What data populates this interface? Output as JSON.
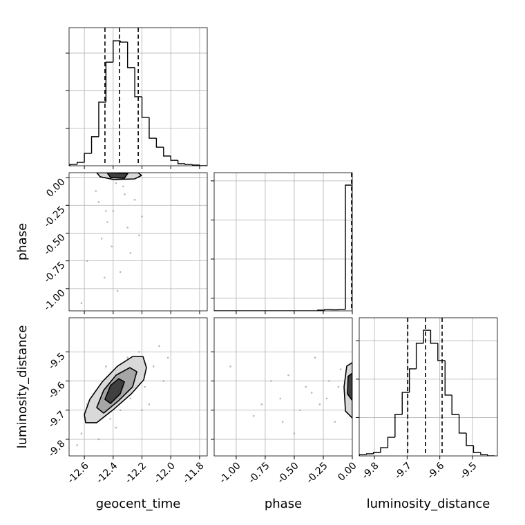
{
  "chart_data": [
    {
      "type": "histogram",
      "color": "#000000",
      "bins": [
        -12.7,
        -12.65,
        -12.6,
        -12.55,
        -12.5,
        -12.45,
        -12.4,
        -12.35,
        -12.3,
        -12.25,
        -12.2,
        -12.15,
        -12.1,
        -12.05,
        -12.0,
        -11.95,
        -11.9,
        -11.85,
        -11.8,
        -11.75
      ],
      "counts": [
        7,
        18,
        66,
        155,
        339,
        552,
        666,
        659,
        523,
        368,
        258,
        147,
        99,
        52,
        29,
        11,
        7,
        4,
        0
      ],
      "quantiles": [
        -12.457,
        -12.356,
        -12.226
      ],
      "xlim": [
        -12.706,
        -11.747
      ],
      "ylim": [
        0,
        736
      ],
      "xticks": [
        -12.6,
        -12.4,
        -12.2,
        -12.0,
        -11.8
      ],
      "yticks": [
        200,
        400,
        600
      ],
      "xtick_labels": false,
      "ytick_labels": false,
      "grid": true
    },
    {
      "type": "scatter",
      "point_color": "#999999",
      "x": [
        -12.52,
        -12.45,
        -12.38,
        -12.3,
        -12.41,
        -12.25,
        -12.35,
        -12.48,
        -12.2,
        -12.58,
        -12.32,
        -12.44,
        -12.28,
        -12.37,
        -12.62,
        -12.5,
        -12.22,
        -12.4,
        -12.33,
        -12.46
      ],
      "y": [
        -0.12,
        -0.3,
        -0.05,
        -0.45,
        -0.62,
        -0.2,
        -0.85,
        -0.55,
        -0.35,
        -0.75,
        -0.15,
        -0.4,
        -0.68,
        -1.02,
        -1.13,
        -0.22,
        -0.52,
        -0.3,
        -0.08,
        -0.9
      ],
      "contours": [
        {
          "color": "#d9d9d9",
          "x": [
            -12.514,
            -12.49,
            -12.394,
            -12.251,
            -12.203,
            -12.227
          ],
          "y": [
            0.044,
            0.007,
            -0.018,
            -0.012,
            0.019,
            0.044
          ]
        },
        {
          "color": "#404040",
          "x": [
            -12.442,
            -12.418,
            -12.322,
            -12.298
          ],
          "y": [
            0.044,
            0.0,
            -0.006,
            0.038
          ]
        }
      ],
      "xlim": [
        -12.706,
        -11.747
      ],
      "ylim": [
        -1.2,
        0.044
      ],
      "xticks": [
        -12.6,
        -12.4,
        -12.2,
        -12.0,
        -11.8
      ],
      "yticks": [
        {
          "value": 0,
          "label": "0.00"
        },
        {
          "value": -0.25,
          "label": "-0.25"
        },
        {
          "value": -0.5,
          "label": "-0.50"
        },
        {
          "value": -0.75,
          "label": "-0.75"
        },
        {
          "value": -1,
          "label": "-1.00"
        }
      ],
      "xtick_labels": false,
      "ytick_labels": true,
      "grid": true,
      "y_label": "phase"
    },
    {
      "type": "histogram",
      "color": "#000000",
      "bins": [
        -1.19,
        -1.1305,
        -1.071,
        -1.0115,
        -0.952,
        -0.8925,
        -0.833,
        -0.7735,
        -0.714,
        -0.6545,
        -0.595,
        -0.5355,
        -0.476,
        -0.4165,
        -0.357,
        -0.2975,
        -0.238,
        -0.1785,
        -0.119,
        -0.0595,
        0
      ],
      "counts": [
        0,
        0,
        0,
        0,
        0,
        0,
        0,
        0,
        0,
        0,
        0,
        0,
        0,
        0,
        0,
        20,
        35,
        30,
        40,
        3458
      ],
      "quantiles": [
        -0.006,
        -0.003,
        -0.001
      ],
      "xlim": [
        -1.19,
        0
      ],
      "ylim": [
        0,
        3800
      ],
      "xticks": [
        -1,
        -0.75,
        -0.5,
        -0.25,
        0
      ],
      "yticks": [
        350,
        1425,
        2500,
        3575
      ],
      "xtick_labels": false,
      "ytick_labels": false,
      "grid": true
    },
    {
      "type": "scatter",
      "point_color": "#999999",
      "x": [
        -12.62,
        -12.55,
        -12.5,
        -12.48,
        -12.42,
        -12.4,
        -12.35,
        -12.3,
        -12.28,
        -12.22,
        -12.18,
        -12.12,
        -12.08,
        -12.05,
        -12.15,
        -12.58,
        -12.45,
        -12.25,
        -12.38,
        -12.02,
        -12.65,
        -12.2
      ],
      "y": [
        -9.78,
        -9.72,
        -9.8,
        -9.66,
        -9.73,
        -9.6,
        -9.7,
        -9.52,
        -9.66,
        -9.5,
        -9.62,
        -9.55,
        -9.48,
        -9.6,
        -9.68,
        -9.68,
        -9.55,
        -9.58,
        -9.76,
        -9.52,
        -9.82,
        -9.7
      ],
      "contours": [
        {
          "color": "#d9d9d9",
          "x": [
            -12.6,
            -12.562,
            -12.476,
            -12.37,
            -12.265,
            -12.193,
            -12.169,
            -12.188,
            -12.274,
            -12.394,
            -12.514,
            -12.591
          ],
          "y": [
            -9.715,
            -9.663,
            -9.603,
            -9.549,
            -9.516,
            -9.516,
            -9.554,
            -9.596,
            -9.644,
            -9.696,
            -9.743,
            -9.743
          ]
        },
        {
          "color": "#a6a6a6",
          "x": [
            -12.514,
            -12.466,
            -12.38,
            -12.284,
            -12.236,
            -12.265,
            -12.361,
            -12.466
          ],
          "y": [
            -9.691,
            -9.632,
            -9.58,
            -9.554,
            -9.568,
            -9.62,
            -9.667,
            -9.71
          ]
        },
        {
          "color": "#404040",
          "x": [
            -12.457,
            -12.418,
            -12.361,
            -12.322,
            -12.351,
            -12.418
          ],
          "y": [
            -9.663,
            -9.615,
            -9.592,
            -9.603,
            -9.644,
            -9.677
          ]
        }
      ],
      "xlim": [
        -12.706,
        -11.747
      ],
      "ylim": [
        -9.857,
        -9.383
      ],
      "xticks": [
        -12.6,
        -12.4,
        -12.2,
        {
          "value": -12,
          "label": "-12.0"
        },
        -11.8
      ],
      "yticks": [
        -9.5,
        -9.6,
        -9.7,
        -9.8
      ],
      "xtick_labels": true,
      "ytick_labels": true,
      "grid": true,
      "x_label": "geocent_time",
      "y_label": "luminosity_distance"
    },
    {
      "type": "scatter",
      "point_color": "#999999",
      "x": [
        -1.05,
        -0.85,
        -0.7,
        -0.62,
        -0.55,
        -0.45,
        -0.4,
        -0.32,
        -0.28,
        -0.2,
        -0.15,
        -0.1,
        -0.5,
        -0.35,
        -0.22,
        -0.78,
        -0.6,
        -0.12
      ],
      "y": [
        -9.55,
        -9.72,
        -9.6,
        -9.66,
        -9.58,
        -9.7,
        -9.62,
        -9.52,
        -9.68,
        -9.6,
        -9.74,
        -9.56,
        -9.78,
        -9.64,
        -9.66,
        -9.68,
        -9.74,
        -9.62
      ],
      "contours": [
        {
          "color": "#d9d9d9",
          "x": [
            0,
            -0.048,
            -0.071,
            -0.059,
            0
          ],
          "y": [
            -9.537,
            -9.549,
            -9.62,
            -9.703,
            -9.727
          ]
        },
        {
          "color": "#404040",
          "x": [
            0,
            -0.036,
            -0.042,
            0
          ],
          "y": [
            -9.573,
            -9.584,
            -9.644,
            -9.667
          ]
        }
      ],
      "xlim": [
        -1.19,
        0
      ],
      "ylim": [
        -9.857,
        -9.383
      ],
      "xticks": [
        {
          "value": -1,
          "label": "-1.00"
        },
        {
          "value": -0.75,
          "label": "-0.75"
        },
        {
          "value": -0.5,
          "label": "-0.50"
        },
        {
          "value": -0.25,
          "label": "-0.25"
        },
        {
          "value": 0,
          "label": "0.00"
        }
      ],
      "yticks": [
        -9.5,
        -9.6,
        -9.7,
        -9.8
      ],
      "xtick_labels": true,
      "ytick_labels": false,
      "grid": true,
      "x_label": "phase"
    },
    {
      "type": "histogram",
      "color": "#000000",
      "bins": [
        -9.846,
        -9.824,
        -9.803,
        -9.781,
        -9.759,
        -9.737,
        -9.715,
        -9.693,
        -9.672,
        -9.65,
        -9.628,
        -9.606,
        -9.584,
        -9.563,
        -9.541,
        -9.519,
        -9.497,
        -9.475,
        -9.454,
        -9.432
      ],
      "counts": [
        7,
        11,
        18,
        43,
        97,
        216,
        331,
        454,
        587,
        655,
        587,
        497,
        317,
        216,
        119,
        54,
        18,
        7,
        0
      ],
      "quantiles": [
        -9.698,
        -9.644,
        -9.593
      ],
      "xlim": [
        -9.8465,
        -9.424
      ],
      "ylim": [
        0,
        720
      ],
      "xticks": [
        -9.8,
        -9.7,
        -9.6,
        -9.5
      ],
      "yticks": [
        200,
        400,
        600
      ],
      "xtick_labels": true,
      "ytick_labels": false,
      "grid": true,
      "x_label": "luminosity_distance"
    }
  ]
}
